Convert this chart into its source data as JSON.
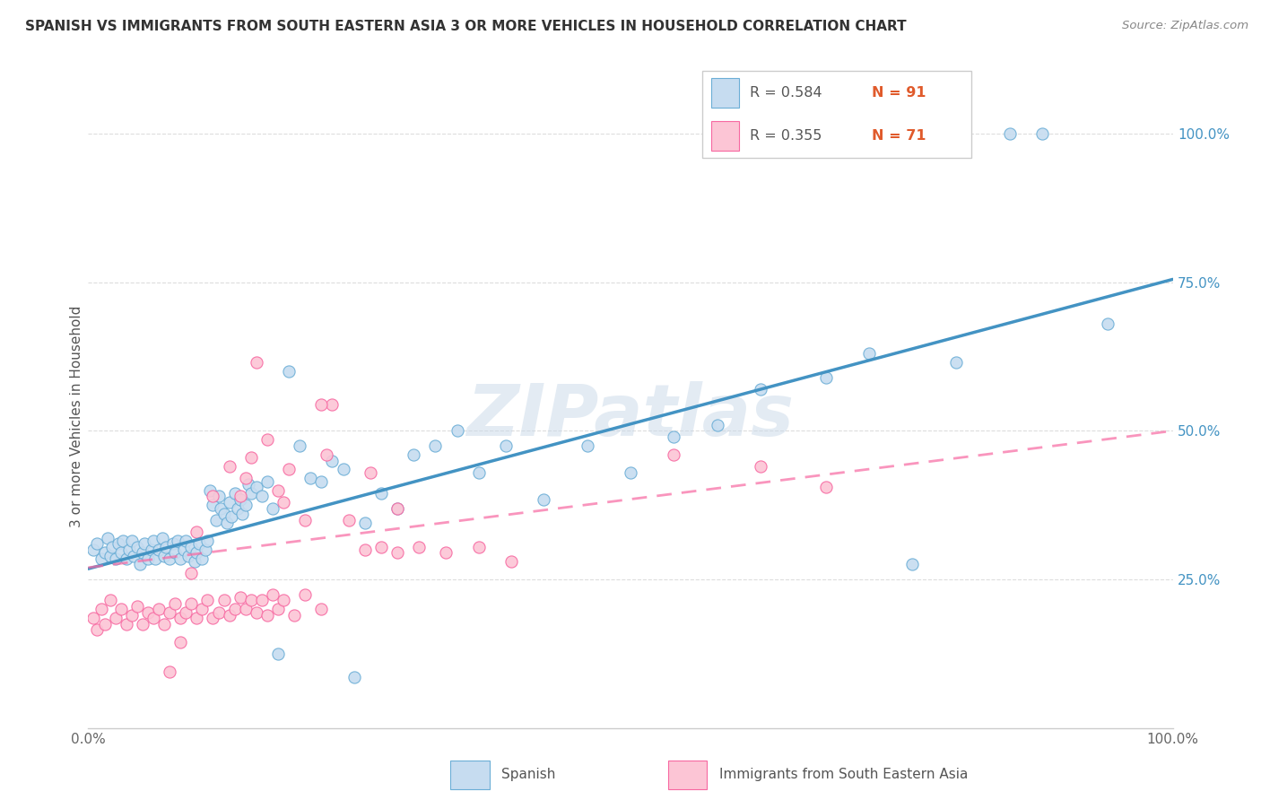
{
  "title": "SPANISH VS IMMIGRANTS FROM SOUTH EASTERN ASIA 3 OR MORE VEHICLES IN HOUSEHOLD CORRELATION CHART",
  "source": "Source: ZipAtlas.com",
  "ylabel": "3 or more Vehicles in Household",
  "ytick_labels": [
    "25.0%",
    "50.0%",
    "75.0%",
    "100.0%"
  ],
  "ytick_positions": [
    0.25,
    0.5,
    0.75,
    1.0
  ],
  "legend_blue_r": "R = 0.584",
  "legend_blue_n": "N = 91",
  "legend_pink_r": "R = 0.355",
  "legend_pink_n": "N = 71",
  "legend_label_blue": "Spanish",
  "legend_label_pink": "Immigrants from South Eastern Asia",
  "blue_fill": "#c6dcf0",
  "blue_edge": "#6baed6",
  "pink_fill": "#fcc5d5",
  "pink_edge": "#f768a1",
  "line_blue": "#4393c3",
  "line_pink": "#f768a1",
  "watermark": "ZIPatlas",
  "r_color": "#555555",
  "n_color": "#e05a2b",
  "ytick_color": "#4393c3",
  "xmin": 0.0,
  "xmax": 1.0,
  "ymin": 0.0,
  "ymax": 1.05,
  "blue_scatter_x": [
    0.005,
    0.008,
    0.012,
    0.015,
    0.018,
    0.02,
    0.022,
    0.025,
    0.028,
    0.03,
    0.032,
    0.035,
    0.038,
    0.04,
    0.042,
    0.045,
    0.048,
    0.05,
    0.052,
    0.055,
    0.058,
    0.06,
    0.062,
    0.065,
    0.068,
    0.07,
    0.072,
    0.075,
    0.078,
    0.08,
    0.082,
    0.085,
    0.088,
    0.09,
    0.092,
    0.095,
    0.098,
    0.1,
    0.102,
    0.105,
    0.108,
    0.11,
    0.112,
    0.115,
    0.118,
    0.12,
    0.122,
    0.125,
    0.128,
    0.13,
    0.132,
    0.135,
    0.138,
    0.14,
    0.142,
    0.145,
    0.148,
    0.15,
    0.155,
    0.16,
    0.165,
    0.17,
    0.175,
    0.185,
    0.195,
    0.205,
    0.215,
    0.225,
    0.235,
    0.245,
    0.255,
    0.27,
    0.285,
    0.3,
    0.32,
    0.34,
    0.36,
    0.385,
    0.42,
    0.46,
    0.5,
    0.54,
    0.58,
    0.62,
    0.68,
    0.72,
    0.76,
    0.8,
    0.85,
    0.88,
    0.94
  ],
  "blue_scatter_y": [
    0.3,
    0.31,
    0.285,
    0.295,
    0.32,
    0.29,
    0.305,
    0.285,
    0.31,
    0.295,
    0.315,
    0.285,
    0.3,
    0.315,
    0.29,
    0.305,
    0.275,
    0.295,
    0.31,
    0.285,
    0.3,
    0.315,
    0.285,
    0.3,
    0.32,
    0.29,
    0.305,
    0.285,
    0.31,
    0.295,
    0.315,
    0.285,
    0.3,
    0.315,
    0.29,
    0.305,
    0.28,
    0.295,
    0.31,
    0.285,
    0.3,
    0.315,
    0.4,
    0.375,
    0.35,
    0.39,
    0.37,
    0.36,
    0.345,
    0.38,
    0.355,
    0.395,
    0.37,
    0.385,
    0.36,
    0.375,
    0.41,
    0.395,
    0.405,
    0.39,
    0.415,
    0.37,
    0.125,
    0.6,
    0.475,
    0.42,
    0.415,
    0.45,
    0.435,
    0.085,
    0.345,
    0.395,
    0.37,
    0.46,
    0.475,
    0.5,
    0.43,
    0.475,
    0.385,
    0.475,
    0.43,
    0.49,
    0.51,
    0.57,
    0.59,
    0.63,
    0.275,
    0.615,
    1.0,
    1.0,
    0.68
  ],
  "pink_scatter_x": [
    0.005,
    0.008,
    0.012,
    0.015,
    0.02,
    0.025,
    0.03,
    0.035,
    0.04,
    0.045,
    0.05,
    0.055,
    0.06,
    0.065,
    0.07,
    0.075,
    0.08,
    0.085,
    0.09,
    0.095,
    0.1,
    0.105,
    0.11,
    0.115,
    0.12,
    0.125,
    0.13,
    0.135,
    0.14,
    0.145,
    0.15,
    0.155,
    0.16,
    0.165,
    0.17,
    0.175,
    0.18,
    0.19,
    0.2,
    0.215,
    0.225,
    0.24,
    0.255,
    0.27,
    0.285,
    0.305,
    0.33,
    0.36,
    0.39,
    0.175,
    0.2,
    0.155,
    0.145,
    0.13,
    0.115,
    0.1,
    0.095,
    0.085,
    0.075,
    0.285,
    0.215,
    0.185,
    0.165,
    0.15,
    0.14,
    0.18,
    0.22,
    0.26,
    0.54,
    0.62,
    0.68
  ],
  "pink_scatter_y": [
    0.185,
    0.165,
    0.2,
    0.175,
    0.215,
    0.185,
    0.2,
    0.175,
    0.19,
    0.205,
    0.175,
    0.195,
    0.185,
    0.2,
    0.175,
    0.195,
    0.21,
    0.185,
    0.195,
    0.21,
    0.185,
    0.2,
    0.215,
    0.185,
    0.195,
    0.215,
    0.19,
    0.2,
    0.22,
    0.2,
    0.215,
    0.195,
    0.215,
    0.19,
    0.225,
    0.2,
    0.215,
    0.19,
    0.225,
    0.2,
    0.545,
    0.35,
    0.3,
    0.305,
    0.295,
    0.305,
    0.295,
    0.305,
    0.28,
    0.4,
    0.35,
    0.615,
    0.42,
    0.44,
    0.39,
    0.33,
    0.26,
    0.145,
    0.095,
    0.37,
    0.545,
    0.435,
    0.485,
    0.455,
    0.39,
    0.38,
    0.46,
    0.43,
    0.46,
    0.44,
    0.405
  ]
}
